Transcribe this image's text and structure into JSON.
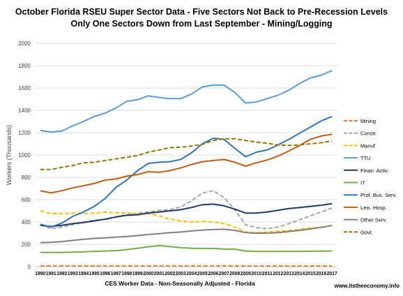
{
  "title_line1": "October Florida RSEU Super Sector Data - Five Sectors Not Back to Pre-Recession Levels",
  "title_line2": "Only One Sectors Down from Last September - Mining/Logging",
  "footer": "www.itstheeconomy.info",
  "chart_data": {
    "type": "line",
    "title": "October Florida RSEU Super Sector Data - Five Sectors Not Back to Pre-Recession Levels",
    "subtitle": "Only One Sectors Down from Last September - Mining/Logging",
    "xlabel": "CES Worker Data - Non-Seasonally Adjusted - Florida",
    "ylabel": "Workers (Thousands)",
    "ylim": [
      0,
      2000
    ],
    "yticks": [
      0,
      200,
      400,
      600,
      800,
      1000,
      1200,
      1400,
      1600,
      1800,
      2000
    ],
    "grid": true,
    "legend_position": "right",
    "x": [
      "1990",
      "1991",
      "1992",
      "1993",
      "1994",
      "1995",
      "1996",
      "1997",
      "1998",
      "1999",
      "2000",
      "2001",
      "2002",
      "2003",
      "2004",
      "2005",
      "2006",
      "2007",
      "2008",
      "2009",
      "2010",
      "2011",
      "2012",
      "2013",
      "2014",
      "2015",
      "2016",
      "2017"
    ],
    "series": [
      {
        "name": "Mining",
        "color": "#ED7D31",
        "dash": "dash",
        "width": 2,
        "values": [
          7,
          7,
          7,
          7,
          7,
          7,
          7,
          7,
          7,
          7,
          7,
          7,
          7,
          7,
          7,
          7,
          7,
          7,
          7,
          7,
          6,
          6,
          6,
          6,
          6,
          6,
          6,
          6
        ]
      },
      {
        "name": "Constr",
        "color": "#A5A5A5",
        "dash": "dash",
        "width": 2,
        "values": [
          375,
          340,
          355,
          375,
          400,
          415,
          425,
          445,
          465,
          480,
          490,
          505,
          510,
          535,
          590,
          660,
          680,
          620,
          510,
          375,
          350,
          340,
          355,
          385,
          420,
          455,
          490,
          525
        ]
      },
      {
        "name": "Manuf.",
        "color": "#FFC000",
        "dash": "dash",
        "width": 2,
        "values": [
          500,
          475,
          475,
          480,
          475,
          480,
          488,
          483,
          480,
          475,
          475,
          455,
          425,
          410,
          400,
          405,
          400,
          385,
          355,
          310,
          305,
          310,
          318,
          325,
          335,
          345,
          355,
          365
        ]
      },
      {
        "name": "TTU",
        "color": "#5B9BD5",
        "dash": "solid",
        "width": 2,
        "values": [
          1220,
          1205,
          1215,
          1260,
          1300,
          1345,
          1375,
          1420,
          1480,
          1495,
          1530,
          1515,
          1505,
          1505,
          1545,
          1610,
          1625,
          1625,
          1560,
          1465,
          1475,
          1505,
          1535,
          1580,
          1640,
          1690,
          1715,
          1755
        ]
      },
      {
        "name": "Finan. Activ.",
        "color": "#1F3864",
        "dash": "solid",
        "width": 2,
        "values": [
          370,
          360,
          370,
          385,
          395,
          410,
          425,
          445,
          460,
          465,
          480,
          490,
          500,
          510,
          530,
          555,
          560,
          545,
          515,
          480,
          480,
          490,
          505,
          520,
          530,
          540,
          550,
          565
        ]
      },
      {
        "name": "IT",
        "color": "#70AD47",
        "dash": "solid",
        "width": 2,
        "values": [
          128,
          127,
          127,
          130,
          133,
          137,
          140,
          143,
          153,
          165,
          178,
          188,
          180,
          170,
          165,
          163,
          163,
          158,
          157,
          140,
          137,
          136,
          137,
          137,
          137,
          138,
          139,
          141
        ]
      },
      {
        "name": "Prof. Bus. Serv.",
        "color": "#2E75B6",
        "dash": "solid",
        "width": 2,
        "values": [
          380,
          355,
          390,
          450,
          490,
          540,
          610,
          710,
          775,
          860,
          925,
          935,
          940,
          960,
          1020,
          1100,
          1150,
          1140,
          1060,
          985,
          1025,
          1045,
          1090,
          1140,
          1195,
          1250,
          1305,
          1345
        ]
      },
      {
        "name": "Leis. Hosp.",
        "color": "#C55A11",
        "dash": "solid",
        "width": 2,
        "values": [
          680,
          660,
          680,
          705,
          725,
          745,
          775,
          785,
          810,
          825,
          850,
          845,
          860,
          885,
          915,
          940,
          950,
          960,
          935,
          900,
          930,
          955,
          990,
          1035,
          1085,
          1140,
          1170,
          1185
        ]
      },
      {
        "name": "Other Serv.",
        "color": "#7F7F7F",
        "dash": "solid",
        "width": 2,
        "values": [
          215,
          218,
          225,
          235,
          245,
          253,
          258,
          265,
          270,
          278,
          288,
          295,
          305,
          310,
          320,
          327,
          333,
          335,
          325,
          305,
          300,
          300,
          305,
          315,
          325,
          338,
          352,
          370
        ]
      },
      {
        "name": "Govt.",
        "color": "#997300",
        "dash": "dash",
        "width": 2,
        "values": [
          870,
          870,
          890,
          905,
          930,
          935,
          950,
          965,
          980,
          995,
          1025,
          1045,
          1065,
          1070,
          1080,
          1095,
          1130,
          1145,
          1145,
          1130,
          1115,
          1105,
          1090,
          1085,
          1090,
          1100,
          1110,
          1125
        ]
      }
    ]
  }
}
